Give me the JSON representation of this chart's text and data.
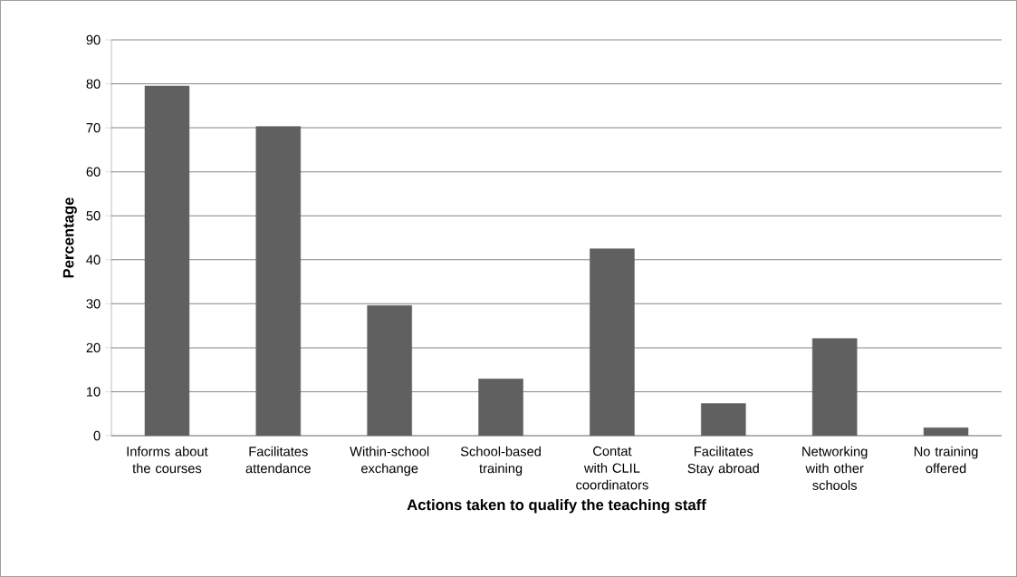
{
  "chart_data": {
    "type": "bar",
    "categories": [
      "Informs about the courses",
      "Facilitates attendance",
      "Within-school exchange",
      "School-based training",
      "Contat with CLIL coordinators",
      "Facilitates Stay abroad",
      "Networking with other schools",
      "No training offered"
    ],
    "values": [
      79.5,
      70.3,
      29.6,
      12.9,
      42.5,
      7.3,
      22.1,
      1.8
    ],
    "color": "#606060",
    "xlabel": "Actions taken to qualify the teaching staff",
    "ylabel": "Percentage",
    "ylim": [
      0,
      90
    ],
    "yticks": [
      0,
      10,
      20,
      30,
      40,
      50,
      60,
      70,
      80,
      90
    ],
    "grid": "y"
  }
}
